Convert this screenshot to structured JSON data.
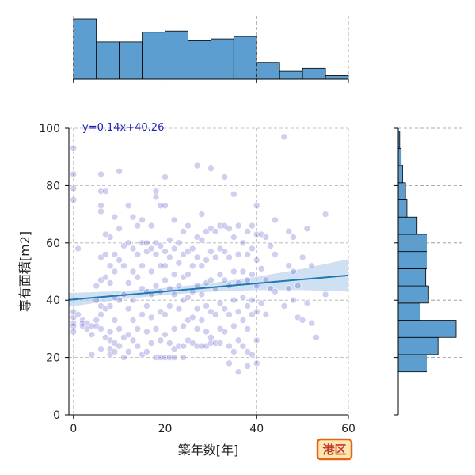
{
  "chart_data": {
    "type": "scatter",
    "xlabel": "築年数[年]",
    "ylabel": "専有面積[m2]",
    "xlim": [
      -1,
      60
    ],
    "ylim": [
      0,
      100
    ],
    "x_ticks": [
      0,
      20,
      40,
      60
    ],
    "y_ticks": [
      0,
      20,
      40,
      60,
      80,
      100
    ],
    "grid": true,
    "regression": {
      "label": "y=0.14x+40.26",
      "slope": 0.14,
      "intercept": 40.26
    },
    "badge": "港区",
    "colors": {
      "point": "#3f3fbf",
      "line": "#1f77b4",
      "band": "#aecbe8",
      "hist": "#5b9ecf"
    },
    "x_hist": {
      "bin_edges": [
        0,
        5,
        10,
        15,
        20,
        25,
        30,
        35,
        40,
        45,
        50,
        55,
        60
      ],
      "counts": [
        100,
        62,
        62,
        78,
        80,
        64,
        67,
        71,
        28,
        13,
        18,
        6
      ]
    },
    "y_hist": {
      "bin_edges": [
        15,
        21,
        27,
        33,
        39,
        45,
        51,
        57,
        63,
        69,
        75,
        81,
        87,
        93,
        99
      ],
      "counts": [
        40,
        55,
        80,
        30,
        42,
        38,
        40,
        40,
        26,
        12,
        10,
        6,
        4,
        2
      ]
    },
    "points": [
      [
        0,
        93
      ],
      [
        0,
        84
      ],
      [
        0,
        79
      ],
      [
        0,
        75
      ],
      [
        0,
        36
      ],
      [
        0,
        34
      ],
      [
        0,
        32
      ],
      [
        0,
        31
      ],
      [
        0,
        29
      ],
      [
        1,
        58
      ],
      [
        1,
        35
      ],
      [
        2,
        33
      ],
      [
        2,
        32
      ],
      [
        2,
        31
      ],
      [
        3,
        32
      ],
      [
        3,
        30
      ],
      [
        4,
        31
      ],
      [
        4,
        28
      ],
      [
        4,
        21
      ],
      [
        5,
        45
      ],
      [
        5,
        40
      ],
      [
        5,
        33
      ],
      [
        5,
        31
      ],
      [
        6,
        84
      ],
      [
        6,
        78
      ],
      [
        6,
        73
      ],
      [
        6,
        71
      ],
      [
        6,
        55
      ],
      [
        6,
        47
      ],
      [
        6,
        38
      ],
      [
        6,
        35
      ],
      [
        6,
        30
      ],
      [
        6,
        23
      ],
      [
        7,
        78
      ],
      [
        7,
        63
      ],
      [
        7,
        56
      ],
      [
        7,
        48
      ],
      [
        7,
        37
      ],
      [
        7,
        27
      ],
      [
        8,
        62
      ],
      [
        8,
        52
      ],
      [
        8,
        46
      ],
      [
        8,
        38
      ],
      [
        8,
        29
      ],
      [
        8,
        26
      ],
      [
        8,
        23
      ],
      [
        8,
        21
      ],
      [
        9,
        69
      ],
      [
        9,
        56
      ],
      [
        9,
        50
      ],
      [
        9,
        41
      ],
      [
        9,
        33
      ],
      [
        9,
        25
      ],
      [
        9,
        22
      ],
      [
        10,
        85
      ],
      [
        10,
        65
      ],
      [
        10,
        54
      ],
      [
        10,
        40
      ],
      [
        10,
        30
      ],
      [
        10,
        24
      ],
      [
        11,
        59
      ],
      [
        11,
        52
      ],
      [
        11,
        42
      ],
      [
        11,
        27
      ],
      [
        11,
        20
      ],
      [
        12,
        73
      ],
      [
        12,
        60
      ],
      [
        12,
        46
      ],
      [
        12,
        37
      ],
      [
        12,
        28
      ],
      [
        12,
        22
      ],
      [
        13,
        69
      ],
      [
        13,
        58
      ],
      [
        13,
        50
      ],
      [
        13,
        40
      ],
      [
        13,
        33
      ],
      [
        13,
        26
      ],
      [
        14,
        66
      ],
      [
        14,
        56
      ],
      [
        14,
        48
      ],
      [
        14,
        30
      ],
      [
        14,
        24
      ],
      [
        15,
        68
      ],
      [
        15,
        60
      ],
      [
        15,
        52
      ],
      [
        15,
        44
      ],
      [
        15,
        35
      ],
      [
        15,
        21
      ],
      [
        16,
        60
      ],
      [
        16,
        57
      ],
      [
        16,
        43
      ],
      [
        16,
        38
      ],
      [
        16,
        29
      ],
      [
        16,
        22
      ],
      [
        17,
        66
      ],
      [
        17,
        58
      ],
      [
        17,
        50
      ],
      [
        17,
        42
      ],
      [
        17,
        34
      ],
      [
        17,
        25
      ],
      [
        18,
        78
      ],
      [
        18,
        76
      ],
      [
        18,
        60
      ],
      [
        18,
        56
      ],
      [
        18,
        45
      ],
      [
        18,
        30
      ],
      [
        18,
        20
      ],
      [
        19,
        73
      ],
      [
        19,
        59
      ],
      [
        19,
        52
      ],
      [
        19,
        43
      ],
      [
        19,
        36
      ],
      [
        19,
        26
      ],
      [
        19,
        20
      ],
      [
        20,
        83
      ],
      [
        20,
        73
      ],
      [
        20,
        57
      ],
      [
        20,
        52
      ],
      [
        20,
        47
      ],
      [
        20,
        35
      ],
      [
        20,
        28
      ],
      [
        20,
        20
      ],
      [
        21,
        61
      ],
      [
        21,
        55
      ],
      [
        21,
        44
      ],
      [
        21,
        38
      ],
      [
        21,
        25
      ],
      [
        21,
        20
      ],
      [
        22,
        68
      ],
      [
        22,
        58
      ],
      [
        22,
        49
      ],
      [
        22,
        42
      ],
      [
        22,
        30
      ],
      [
        22,
        23
      ],
      [
        22,
        20
      ],
      [
        23,
        60
      ],
      [
        23,
        53
      ],
      [
        23,
        45
      ],
      [
        23,
        37
      ],
      [
        23,
        24
      ],
      [
        24,
        64
      ],
      [
        24,
        56
      ],
      [
        24,
        48
      ],
      [
        24,
        40
      ],
      [
        24,
        31
      ],
      [
        24,
        24
      ],
      [
        24,
        20
      ],
      [
        25,
        66
      ],
      [
        25,
        57
      ],
      [
        25,
        49
      ],
      [
        25,
        41
      ],
      [
        25,
        33
      ],
      [
        25,
        26
      ],
      [
        26,
        58
      ],
      [
        26,
        52
      ],
      [
        26,
        43
      ],
      [
        26,
        34
      ],
      [
        26,
        25
      ],
      [
        27,
        87
      ],
      [
        27,
        62
      ],
      [
        27,
        55
      ],
      [
        27,
        45
      ],
      [
        27,
        37
      ],
      [
        27,
        30
      ],
      [
        27,
        24
      ],
      [
        28,
        70
      ],
      [
        28,
        61
      ],
      [
        28,
        52
      ],
      [
        28,
        42
      ],
      [
        28,
        33
      ],
      [
        28,
        24
      ],
      [
        29,
        64
      ],
      [
        29,
        54
      ],
      [
        29,
        46
      ],
      [
        29,
        38
      ],
      [
        29,
        29
      ],
      [
        29,
        24
      ],
      [
        30,
        86
      ],
      [
        30,
        65
      ],
      [
        30,
        57
      ],
      [
        30,
        47
      ],
      [
        30,
        36
      ],
      [
        30,
        27
      ],
      [
        30,
        25
      ],
      [
        31,
        64
      ],
      [
        31,
        55
      ],
      [
        31,
        44
      ],
      [
        31,
        35
      ],
      [
        31,
        25
      ],
      [
        32,
        66
      ],
      [
        32,
        58
      ],
      [
        32,
        49
      ],
      [
        32,
        39
      ],
      [
        32,
        30
      ],
      [
        32,
        25
      ],
      [
        33,
        83
      ],
      [
        33,
        66
      ],
      [
        33,
        57
      ],
      [
        33,
        47
      ],
      [
        33,
        37
      ],
      [
        33,
        29
      ],
      [
        34,
        65
      ],
      [
        34,
        55
      ],
      [
        34,
        45
      ],
      [
        34,
        35
      ],
      [
        34,
        24
      ],
      [
        34,
        18
      ],
      [
        35,
        77
      ],
      [
        35,
        62
      ],
      [
        35,
        50
      ],
      [
        35,
        40
      ],
      [
        35,
        31
      ],
      [
        35,
        22
      ],
      [
        36,
        66
      ],
      [
        36,
        56
      ],
      [
        36,
        46
      ],
      [
        36,
        36
      ],
      [
        36,
        26
      ],
      [
        36,
        15
      ],
      [
        37,
        60
      ],
      [
        37,
        50
      ],
      [
        37,
        41
      ],
      [
        37,
        33
      ],
      [
        37,
        24
      ],
      [
        38,
        64
      ],
      [
        38,
        56
      ],
      [
        38,
        47
      ],
      [
        38,
        38
      ],
      [
        38,
        30
      ],
      [
        38,
        22
      ],
      [
        38,
        17
      ],
      [
        39,
        66
      ],
      [
        39,
        58
      ],
      [
        39,
        49
      ],
      [
        39,
        40
      ],
      [
        39,
        35
      ],
      [
        39,
        21
      ],
      [
        40,
        73
      ],
      [
        40,
        63
      ],
      [
        40,
        54
      ],
      [
        40,
        45
      ],
      [
        40,
        36
      ],
      [
        40,
        26
      ],
      [
        40,
        18
      ],
      [
        41,
        63
      ],
      [
        41,
        51
      ],
      [
        41,
        39
      ],
      [
        42,
        62
      ],
      [
        42,
        47
      ],
      [
        42,
        35
      ],
      [
        43,
        59
      ],
      [
        43,
        44
      ],
      [
        44,
        68
      ],
      [
        44,
        56
      ],
      [
        44,
        43
      ],
      [
        46,
        97
      ],
      [
        46,
        38
      ],
      [
        47,
        64
      ],
      [
        47,
        52
      ],
      [
        47,
        44
      ],
      [
        48,
        62
      ],
      [
        48,
        50
      ],
      [
        48,
        40
      ],
      [
        49,
        45
      ],
      [
        49,
        34
      ],
      [
        50,
        55
      ],
      [
        50,
        33
      ],
      [
        51,
        65
      ],
      [
        51,
        39
      ],
      [
        52,
        52
      ],
      [
        52,
        32
      ],
      [
        53,
        27
      ],
      [
        55,
        70
      ],
      [
        55,
        42
      ]
    ]
  }
}
